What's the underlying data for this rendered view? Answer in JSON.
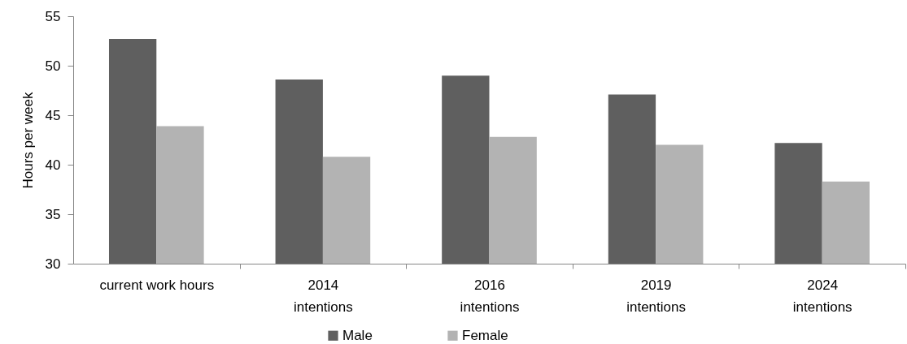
{
  "chart_data": {
    "type": "bar",
    "ylabel": "Hours per week",
    "categories": [
      "current work hours",
      "2014\nintentions",
      "2016\nintentions",
      "2019\nintentions",
      "2024\nintentions"
    ],
    "series": [
      {
        "name": "Male",
        "color": "#5f5f5f",
        "values": [
          52.7,
          48.6,
          49.0,
          47.1,
          42.2
        ]
      },
      {
        "name": "Female",
        "color": "#b3b3b3",
        "values": [
          43.9,
          40.8,
          42.8,
          42.0,
          38.3
        ]
      }
    ],
    "ylim": [
      30,
      55
    ],
    "yticks": [
      30,
      35,
      40,
      45,
      50,
      55
    ],
    "grid": false,
    "legend": "bottom"
  }
}
